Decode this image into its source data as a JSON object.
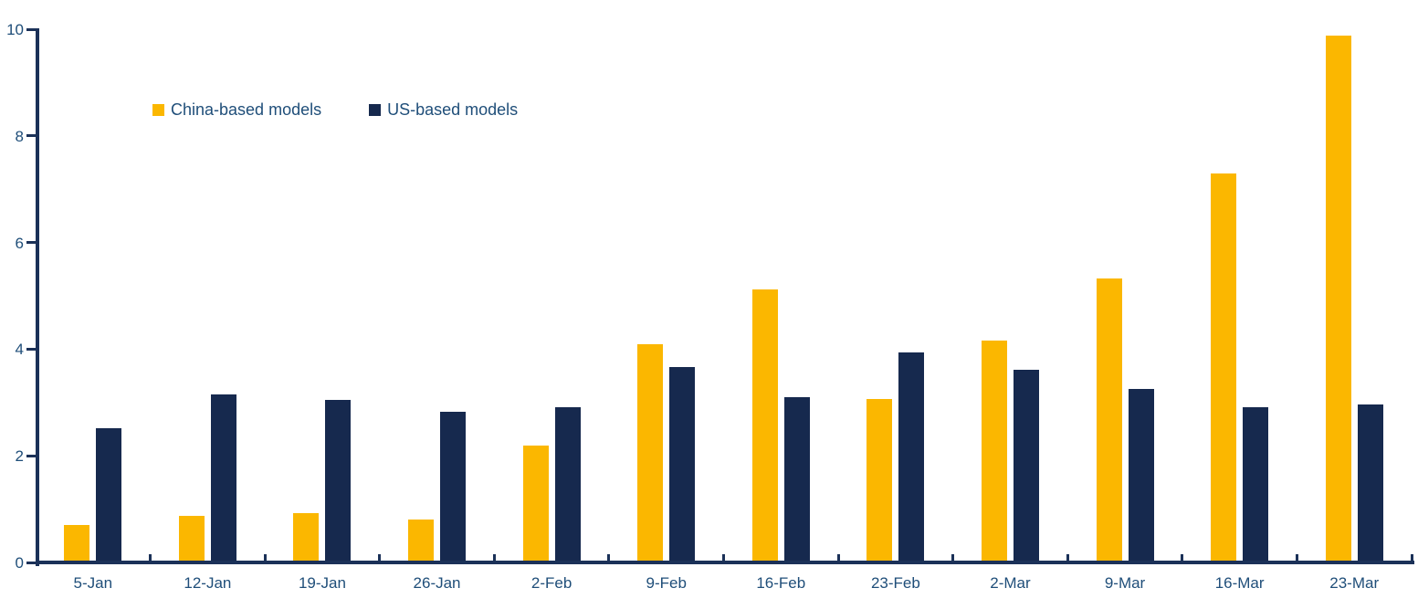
{
  "chart_data": {
    "type": "bar",
    "title": "",
    "categories": [
      "5-Jan",
      "12-Jan",
      "19-Jan",
      "26-Jan",
      "2-Feb",
      "9-Feb",
      "16-Feb",
      "23-Feb",
      "2-Mar",
      "9-Mar",
      "16-Mar",
      "23-Mar"
    ],
    "series": [
      {
        "name": "China-based models",
        "color": "#FBB700",
        "values": [
          0.7,
          0.87,
          0.92,
          0.8,
          2.2,
          4.09,
          5.12,
          3.07,
          4.16,
          5.32,
          7.3,
          9.88
        ]
      },
      {
        "name": "US-based models",
        "color": "#16294E",
        "values": [
          2.52,
          3.15,
          3.04,
          2.83,
          2.91,
          3.66,
          3.1,
          3.93,
          3.61,
          3.26,
          2.91,
          2.97
        ]
      }
    ],
    "ylim": [
      0,
      10
    ],
    "yticks": [
      0,
      2,
      4,
      6,
      8,
      10
    ],
    "grid": false,
    "legend_position": "inside-top-left",
    "axis_color": "#1B3158",
    "tick_label_color": "#1F4E79"
  }
}
